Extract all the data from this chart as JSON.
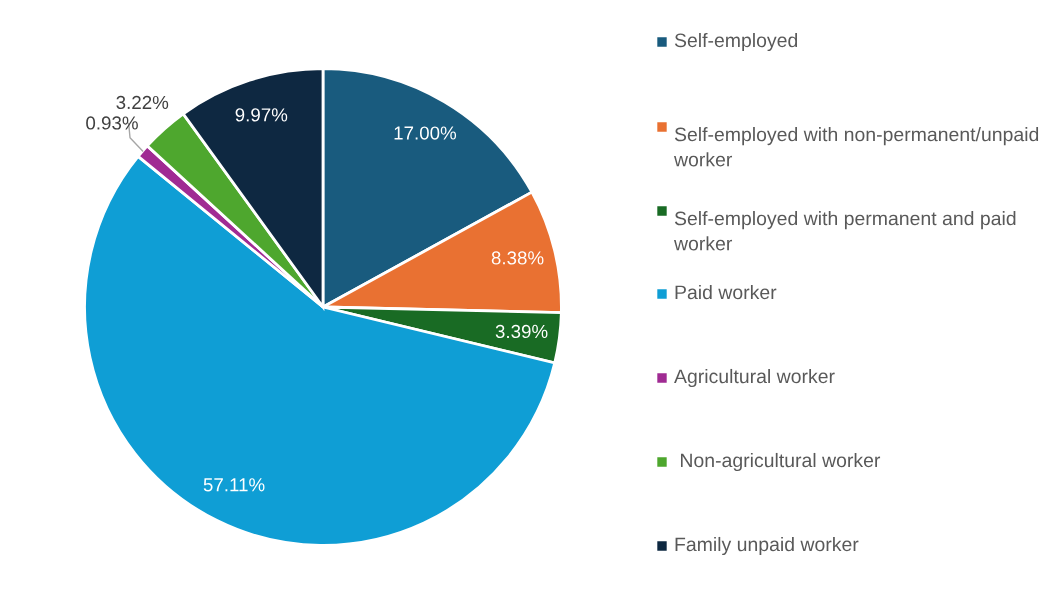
{
  "chart_data": {
    "type": "pie",
    "categories": [
      "Self-employed",
      "Self-employed with non-permanent/unpaid worker",
      "Self-employed with permanent and paid worker",
      "Paid worker",
      "Agricultural worker",
      " Non-agricultural worker",
      "Family unpaid worker"
    ],
    "values": [
      17.0,
      8.38,
      3.39,
      57.11,
      0.93,
      3.22,
      9.97
    ],
    "colors": [
      "#195b7e",
      "#e97132",
      "#196b24",
      "#0f9ed5",
      "#a02b93",
      "#4ea72e",
      "#0e2841"
    ],
    "value_labels": [
      "17.00%",
      "8.38%",
      "3.39%",
      "57.11%",
      "0.93%",
      "3.22%",
      "9.97%"
    ],
    "legend": "right"
  }
}
